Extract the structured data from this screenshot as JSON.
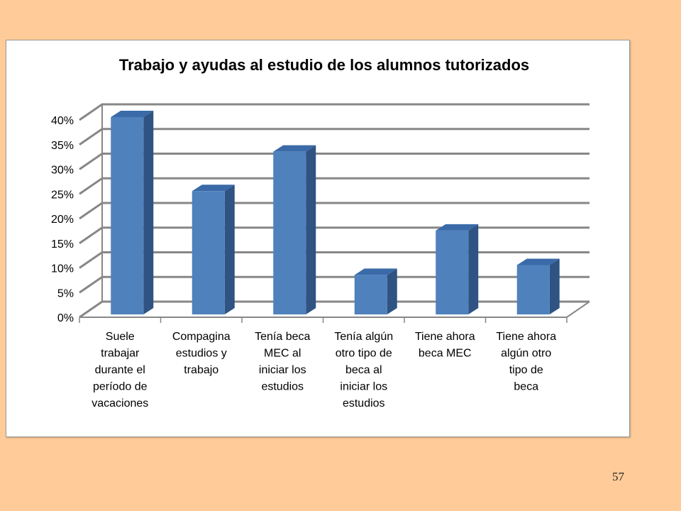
{
  "slide": {
    "page_number": "57"
  },
  "chart_data": {
    "type": "bar",
    "style": "3d-column",
    "title": "Trabajo y ayudas al estudio de los alumnos tutorizados",
    "xlabel": "",
    "ylabel": "",
    "categories": [
      "Suele trabajar durante el período de vacaciones",
      "Compagina estudios y trabajo",
      "Tenía beca MEC al iniciar los estudios",
      "Tenía algún otro tipo de beca al iniciar los estudios",
      "Tiene ahora beca MEC",
      "Tiene ahora algún otro tipo de beca"
    ],
    "category_lines": [
      [
        "Suele",
        "trabajar",
        "durante el",
        "período de",
        "vacaciones"
      ],
      [
        "Compagina",
        "estudios y",
        "trabajo"
      ],
      [
        "Tenía beca",
        "MEC al",
        "iniciar los",
        "estudios"
      ],
      [
        "Tenía algún",
        "otro tipo de",
        "beca al",
        "iniciar los",
        "estudios"
      ],
      [
        "Tiene ahora",
        "beca MEC"
      ],
      [
        "Tiene ahora",
        "algún otro",
        "tipo de",
        "beca"
      ]
    ],
    "values": [
      40,
      25,
      33,
      8,
      17,
      10
    ],
    "ylim": [
      0,
      40
    ],
    "yticks": [
      "0%",
      "5%",
      "10%",
      "15%",
      "20%",
      "25%",
      "30%",
      "35%",
      "40%"
    ],
    "grid": true,
    "legend": "none",
    "colors": {
      "bar_front": "#4F81BD",
      "bar_side": "#2F5382",
      "bar_top": "#3A6AA8",
      "grid": "#878787"
    }
  }
}
